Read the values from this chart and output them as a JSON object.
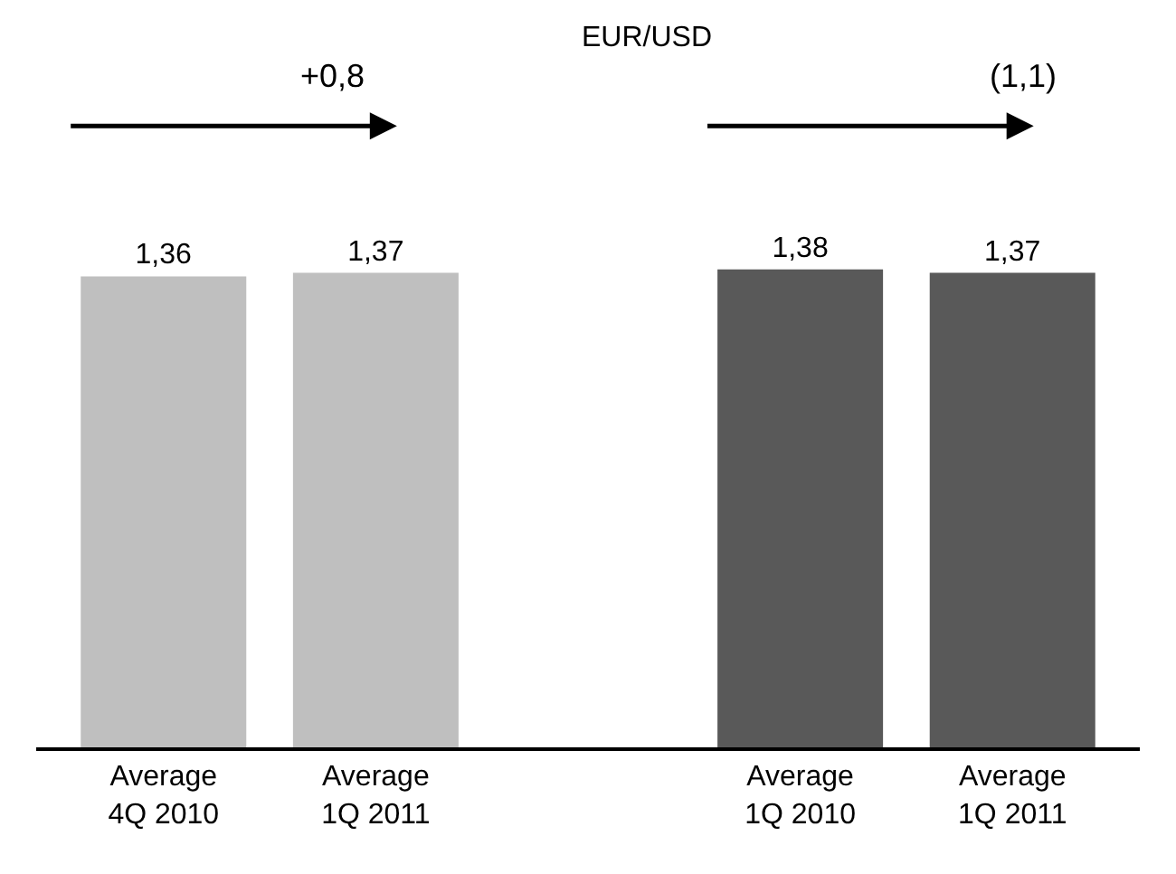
{
  "chart_data": {
    "type": "bar",
    "title": "EUR/USD",
    "categories": [
      "Average\n4Q 2010",
      "Average\n1Q 2011",
      null,
      "Average\n1Q 2010",
      "Average\n1Q 2011"
    ],
    "values": [
      1.36,
      1.37,
      null,
      1.38,
      1.37
    ],
    "colors": [
      "#bfbfbf",
      "#bfbfbf",
      "#bfbfbf",
      "#595959",
      "#595959"
    ],
    "value_labels": [
      "1,36",
      "1,37",
      null,
      "1,38",
      "1,37"
    ],
    "annotations": [
      "+0,8",
      "(1,1)"
    ]
  }
}
